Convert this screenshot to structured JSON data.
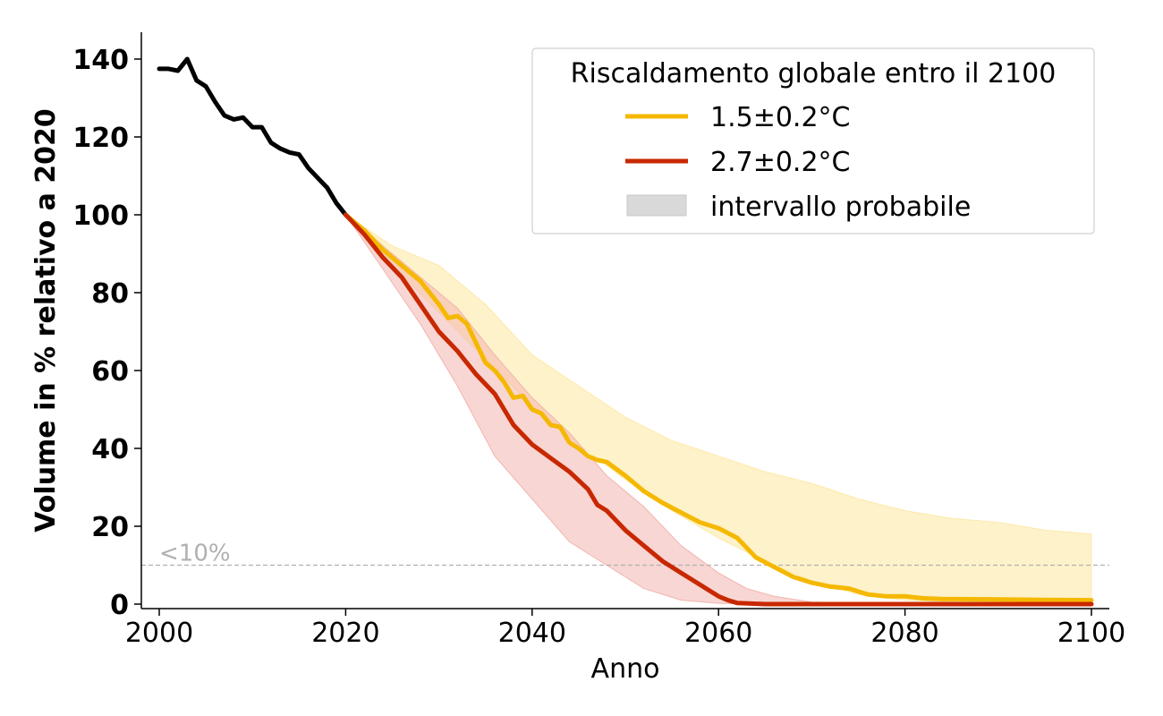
{
  "chart_data": {
    "type": "line",
    "title": "",
    "xlabel": "Anno",
    "ylabel": "Volume in % relativo a 2020",
    "xlim": [
      1998,
      2102
    ],
    "ylim": [
      -1,
      147
    ],
    "xticks": [
      2000,
      2020,
      2040,
      2060,
      2080,
      2100
    ],
    "yticks": [
      0,
      20,
      40,
      60,
      80,
      100,
      120,
      140
    ],
    "grid": false,
    "legend": {
      "title": "Riscaldamento globale entro il 2100",
      "placement": "top-right",
      "entries": [
        "1.5±0.2°C",
        "2.7±0.2°C",
        "intervallo probabile"
      ]
    },
    "threshold": {
      "y": 10,
      "label": "<10%",
      "color": "#b0b0b0"
    },
    "colors": {
      "historical": "#000000",
      "low": "#f5b800",
      "high": "#c82800",
      "band_low": "#fde9a8",
      "band_high": "#f2b5ae",
      "legend_band": "#d9d9d9"
    },
    "series": [
      {
        "name": "historical",
        "x": [
          2000,
          2001,
          2002,
          2003,
          2004,
          2005,
          2006,
          2007,
          2008,
          2009,
          2010,
          2011,
          2012,
          2013,
          2014,
          2015,
          2016,
          2017,
          2018,
          2019,
          2020
        ],
        "values": [
          137.5,
          137.5,
          137,
          140,
          134.5,
          133,
          129,
          125.5,
          124.5,
          125,
          122.5,
          122.5,
          118.5,
          117,
          116,
          115.5,
          112,
          109.5,
          107,
          103,
          100
        ]
      },
      {
        "name": "1.5±0.2°C",
        "x": [
          2020,
          2022,
          2024,
          2026,
          2028,
          2030,
          2031,
          2032,
          2033,
          2034,
          2035,
          2036,
          2037,
          2038,
          2039,
          2040,
          2041,
          2042,
          2043,
          2044,
          2045,
          2046,
          2047,
          2048,
          2050,
          2052,
          2054,
          2056,
          2058,
          2060,
          2062,
          2064,
          2066,
          2068,
          2070,
          2072,
          2074,
          2076,
          2078,
          2080,
          2082,
          2084,
          2090,
          2095,
          2100
        ],
        "values": [
          100,
          96,
          91,
          87,
          83,
          77,
          73.5,
          74,
          72,
          67,
          62,
          60,
          57,
          53,
          53.5,
          50,
          49,
          46,
          45.5,
          41.5,
          40,
          38,
          37,
          36.5,
          33,
          29,
          26,
          23.5,
          21,
          19.5,
          17,
          12,
          9.5,
          7,
          5.5,
          4.5,
          4,
          2.5,
          2,
          2,
          1.5,
          1.3,
          1.2,
          1.1,
          1
        ]
      },
      {
        "name": "2.7±0.2°C",
        "x": [
          2020,
          2022,
          2024,
          2026,
          2028,
          2030,
          2032,
          2034,
          2036,
          2038,
          2040,
          2042,
          2044,
          2046,
          2047,
          2048,
          2050,
          2052,
          2054,
          2056,
          2058,
          2060,
          2061,
          2062,
          2065,
          2070,
          2080,
          2090,
          2100
        ],
        "values": [
          100,
          95,
          89,
          84,
          77,
          70,
          65,
          59,
          54,
          46,
          41,
          37.5,
          34,
          29.5,
          25.5,
          24,
          19,
          15,
          11,
          8,
          5,
          2,
          1,
          0.3,
          0,
          0,
          0,
          0,
          0
        ]
      }
    ],
    "bands": [
      {
        "name": "1.5±0.2°C intervallo probabile",
        "x": [
          2020,
          2025,
          2030,
          2035,
          2040,
          2045,
          2050,
          2055,
          2060,
          2065,
          2070,
          2075,
          2080,
          2085,
          2090,
          2095,
          2100
        ],
        "upper": [
          100,
          92,
          87,
          77,
          64,
          56,
          48,
          42,
          38,
          34,
          31,
          27,
          24,
          22,
          21,
          19,
          18
        ],
        "lower": [
          100,
          87,
          75,
          63,
          51,
          41,
          32,
          24,
          17,
          11,
          6,
          2.5,
          1,
          0.5,
          0.5,
          0.5,
          0.5
        ]
      },
      {
        "name": "2.7±0.2°C intervallo probabile",
        "x": [
          2020,
          2024,
          2028,
          2032,
          2036,
          2040,
          2044,
          2048,
          2052,
          2056,
          2060,
          2063,
          2066,
          2070,
          2080,
          2100
        ],
        "upper": [
          100,
          92,
          84,
          76,
          64,
          53,
          44,
          33,
          25,
          15,
          8,
          4,
          2,
          0.5,
          0,
          0
        ],
        "lower": [
          100,
          86,
          72,
          56,
          38,
          27,
          16,
          10,
          4,
          1,
          0.2,
          0,
          0,
          0,
          0,
          0
        ]
      }
    ]
  }
}
